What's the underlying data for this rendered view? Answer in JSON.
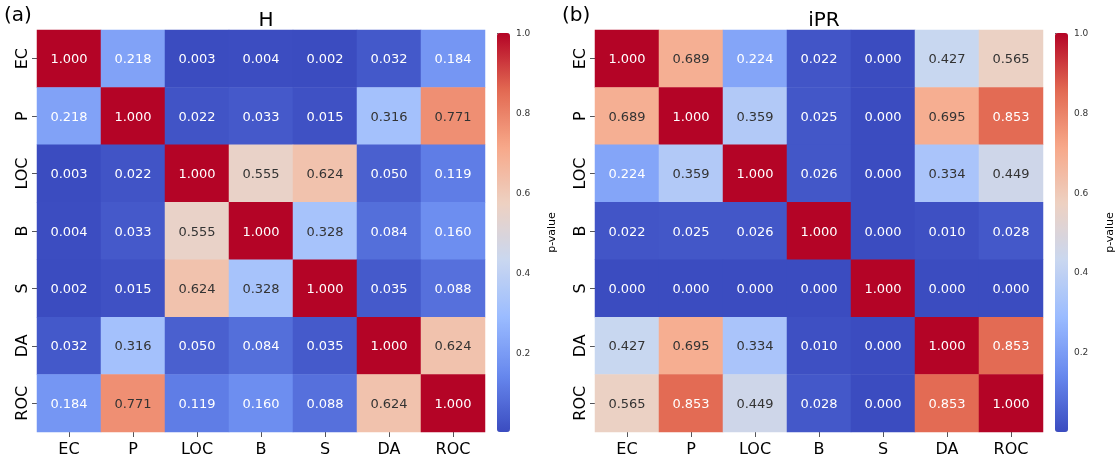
{
  "chart_data": [
    {
      "type": "heatmap",
      "title": "H",
      "annotations": [
        "(a)"
      ],
      "clabel": "p-value",
      "categories": [
        "EC",
        "P",
        "LOC",
        "B",
        "S",
        "DA",
        "ROC"
      ],
      "y_categories": [
        "EC",
        "P",
        "LOC",
        "B",
        "S",
        "DA",
        "ROC"
      ],
      "cells": [
        [
          1.0,
          0.218,
          0.003,
          0.004,
          0.002,
          0.032,
          0.184
        ],
        [
          0.218,
          1.0,
          0.022,
          0.033,
          0.015,
          0.316,
          0.771
        ],
        [
          0.003,
          0.022,
          1.0,
          0.555,
          0.624,
          0.05,
          0.119
        ],
        [
          0.004,
          0.033,
          0.555,
          1.0,
          0.328,
          0.084,
          0.16
        ],
        [
          0.002,
          0.015,
          0.624,
          0.328,
          1.0,
          0.035,
          0.088
        ],
        [
          0.032,
          0.316,
          0.05,
          0.084,
          0.035,
          1.0,
          0.624
        ],
        [
          0.184,
          0.771,
          0.119,
          0.16,
          0.088,
          0.624,
          1.0
        ]
      ],
      "cell_labels": [
        [
          "1.000",
          "0.218",
          "0.003",
          "0.004",
          "0.002",
          "0.032",
          "0.184"
        ],
        [
          "0.218",
          "1.000",
          "0.022",
          "0.033",
          "0.015",
          "0.316",
          "0.771"
        ],
        [
          "0.003",
          "0.022",
          "1.000",
          "0.555",
          "0.624",
          "0.050",
          "0.119"
        ],
        [
          "0.004",
          "0.033",
          "0.555",
          "1.000",
          "0.328",
          "0.084",
          "0.160"
        ],
        [
          "0.002",
          "0.015",
          "0.624",
          "0.328",
          "1.000",
          "0.035",
          "0.088"
        ],
        [
          "0.032",
          "0.316",
          "0.050",
          "0.084",
          "0.035",
          "1.000",
          "0.624"
        ],
        [
          "0.184",
          "0.771",
          "0.119",
          "0.160",
          "0.088",
          "0.624",
          "1.000"
        ]
      ],
      "clim": [
        0.002,
        1
      ],
      "cticks": [
        0.2,
        0.4,
        0.6,
        0.8,
        {
          "value": 1,
          "label": "1.0"
        }
      ]
    },
    {
      "type": "heatmap",
      "title": "iPR",
      "annotations": [
        "(b)"
      ],
      "clabel": "p-value",
      "categories": [
        "EC",
        "P",
        "LOC",
        "B",
        "S",
        "DA",
        "ROC"
      ],
      "y_categories": [
        "EC",
        "P",
        "LOC",
        "B",
        "S",
        "DA",
        "ROC"
      ],
      "cells": [
        [
          1.0,
          0.689,
          0.224,
          0.022,
          0.0,
          0.427,
          0.565
        ],
        [
          0.689,
          1.0,
          0.359,
          0.025,
          0.0,
          0.695,
          0.853
        ],
        [
          0.224,
          0.359,
          1.0,
          0.026,
          0.0,
          0.334,
          0.449
        ],
        [
          0.022,
          0.025,
          0.026,
          1.0,
          0.0,
          0.01,
          0.028
        ],
        [
          0.0,
          0.0,
          0.0,
          0.0,
          1.0,
          0.0,
          0.0
        ],
        [
          0.427,
          0.695,
          0.334,
          0.01,
          0.0,
          1.0,
          0.853
        ],
        [
          0.565,
          0.853,
          0.449,
          0.028,
          0.0,
          0.853,
          1.0
        ]
      ],
      "cell_labels": [
        [
          "1.000",
          "0.689",
          "0.224",
          "0.022",
          "0.000",
          "0.427",
          "0.565"
        ],
        [
          "0.689",
          "1.000",
          "0.359",
          "0.025",
          "0.000",
          "0.695",
          "0.853"
        ],
        [
          "0.224",
          "0.359",
          "1.000",
          "0.026",
          "0.000",
          "0.334",
          "0.449"
        ],
        [
          "0.022",
          "0.025",
          "0.026",
          "1.000",
          "0.000",
          "0.010",
          "0.028"
        ],
        [
          "0.000",
          "0.000",
          "0.000",
          "0.000",
          "1.000",
          "0.000",
          "0.000"
        ],
        [
          "0.427",
          "0.695",
          "0.334",
          "0.010",
          "0.000",
          "1.000",
          "0.853"
        ],
        [
          "0.565",
          "0.853",
          "0.449",
          "0.028",
          "0.000",
          "0.853",
          "1.000"
        ]
      ],
      "clim": [
        0,
        1
      ],
      "cticks": [
        0.2,
        0.4,
        0.6,
        0.8,
        {
          "value": 1,
          "label": "1.0"
        }
      ]
    }
  ]
}
